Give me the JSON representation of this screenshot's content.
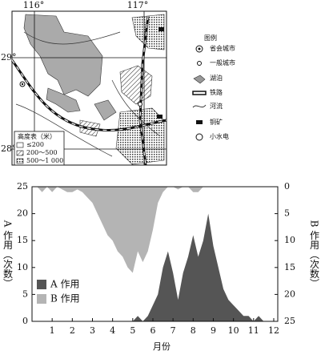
{
  "map": {
    "lon_labels": [
      "116°",
      "117°"
    ],
    "lat_labels": [
      "29°",
      "28°"
    ],
    "legend_title": "图例",
    "legend": [
      "省会城市",
      "一般城市",
      "湖泊",
      "铁路",
      "河流",
      "铜矿",
      "小水电"
    ],
    "elevation_title": "高度表（米）",
    "elevation": [
      "≤200",
      "200～500",
      "500～1 000"
    ]
  },
  "chart_data": {
    "type": "area",
    "x": [
      0,
      0.25,
      0.5,
      0.75,
      1,
      1.25,
      1.5,
      1.75,
      2,
      2.25,
      2.5,
      2.75,
      3,
      3.25,
      3.5,
      3.75,
      4,
      4.25,
      4.5,
      4.75,
      5,
      5.25,
      5.5,
      5.75,
      6,
      6.25,
      6.5,
      6.75,
      7,
      7.25,
      7.5,
      7.75,
      8,
      8.25,
      8.5,
      8.75,
      9,
      9.25,
      9.5,
      9.75,
      10,
      10.25,
      10.5,
      10.75,
      11,
      11.25,
      11.5,
      11.75,
      12
    ],
    "xlim": [
      0,
      12.2
    ],
    "xticks": [
      1,
      2,
      3,
      4,
      5,
      6,
      7,
      8,
      9,
      10,
      11,
      12
    ],
    "xlabel": "月份",
    "ylabel": "A 作用（次数）",
    "y2label": "B 作用（次数）",
    "ylim": [
      0,
      25
    ],
    "yticks": [
      0,
      5,
      10,
      15,
      20,
      25
    ],
    "y2lim": [
      0,
      25
    ],
    "y2ticks": [
      0,
      5,
      10,
      15,
      20,
      25
    ],
    "y2_reversed": true,
    "legend": "lower left",
    "series": [
      {
        "name": "A 作用",
        "color": "#555555",
        "values": [
          0,
          0,
          0,
          0,
          0,
          0,
          0,
          0,
          0,
          0,
          0,
          0,
          0,
          0,
          0,
          0,
          0,
          0,
          0,
          0,
          0,
          1,
          0,
          1,
          3,
          5,
          10,
          13,
          9,
          4,
          9,
          12,
          16,
          12,
          15,
          20,
          14,
          10,
          6,
          4,
          3,
          2,
          1,
          1,
          0,
          1,
          0,
          0,
          0
        ]
      },
      {
        "name": "B 作用",
        "color": "#b4b4b4",
        "axis": "y2",
        "values": [
          0,
          0,
          1,
          0,
          1,
          0,
          0.5,
          1,
          1,
          0.5,
          1,
          2,
          3,
          5,
          7,
          9,
          10,
          12,
          13,
          15,
          16,
          12,
          14,
          12,
          8,
          3,
          1,
          0,
          0,
          0.5,
          0,
          0,
          1,
          1,
          0,
          0,
          0,
          0,
          0,
          0,
          0,
          0,
          0,
          0,
          0,
          0,
          0,
          0,
          0
        ]
      }
    ]
  }
}
